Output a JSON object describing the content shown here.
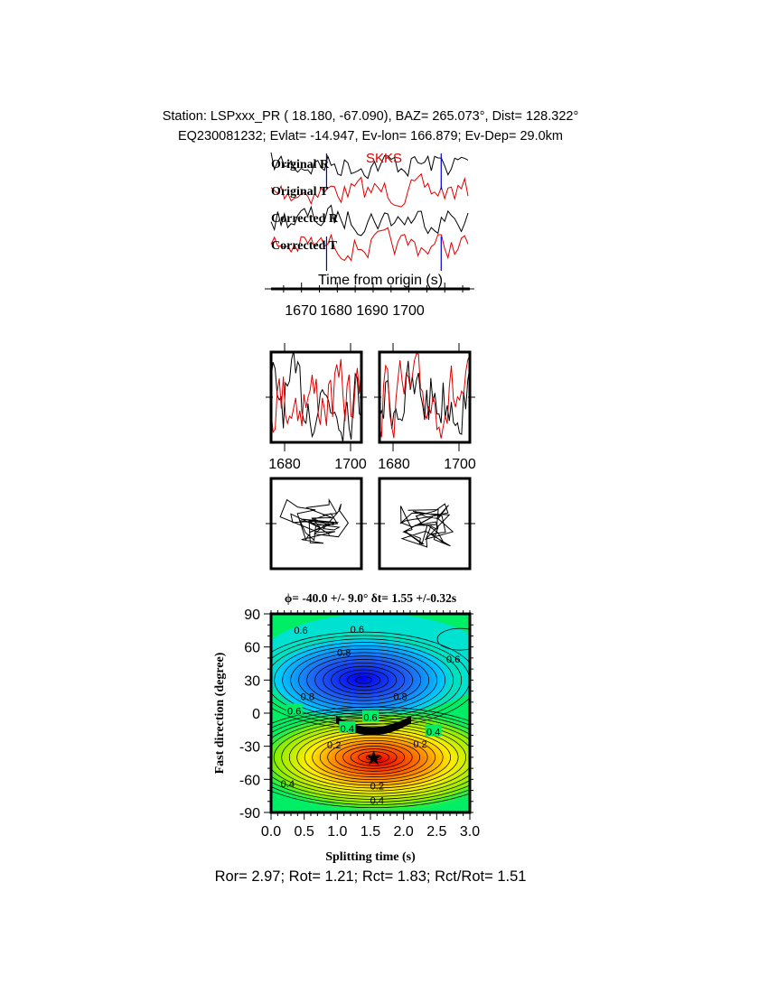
{
  "header": {
    "line1": "Station: LSPxxx_PR (  18.180,  -67.090), BAZ=  265.073°, Dist=  128.322°",
    "line2": "EQ230081232; Evlat= -14.947, Ev-lon= 166.879; Ev-Dep= 29.0km"
  },
  "traces": {
    "phase_label": "SKKS",
    "labels": [
      "Original R",
      "Original T",
      "Corrected R",
      "Corrected T"
    ],
    "colors": [
      "#000000",
      "#dd0000",
      "#000000",
      "#dd0000"
    ],
    "window_marks_s": [
      1677,
      1709
    ],
    "xlabel": "Time from origin (s)",
    "xticks": [
      "1670",
      "1680",
      "1690",
      "1700"
    ],
    "xlim": [
      1661.5,
      1717
    ]
  },
  "waveform_panels": {
    "xticks": [
      "1680",
      "1700"
    ]
  },
  "chart_data": {
    "type": "heatmap",
    "title": "ϕ= -40.0 +/- 9.0° δt= 1.55 +/-0.32s",
    "xlabel": "Splitting time (s)",
    "ylabel": "Fast direction (degree)",
    "xlim": [
      0.0,
      3.0
    ],
    "ylim": [
      -90,
      90
    ],
    "xticks": [
      "0.0",
      "0.5",
      "1.0",
      "1.5",
      "2.0",
      "2.5",
      "3.0"
    ],
    "yticks": [
      "90",
      "60",
      "30",
      "0",
      "-30",
      "-60",
      "-90"
    ],
    "best_fit": {
      "splitting_time": 1.55,
      "fast_direction": -40,
      "marker": "star"
    },
    "maximum_region": {
      "splitting_time": 1.4,
      "fast_direction": 30
    },
    "contour_labels": [
      {
        "text": "0.6",
        "x": 0.45,
        "y": 76
      },
      {
        "text": "0.6",
        "x": 1.3,
        "y": 77
      },
      {
        "text": "0.8",
        "x": 1.1,
        "y": 56
      },
      {
        "text": "0.6",
        "x": 2.75,
        "y": 50
      },
      {
        "text": "0.8",
        "x": 0.55,
        "y": 16
      },
      {
        "text": "0.8",
        "x": 1.95,
        "y": 16
      },
      {
        "text": "0.6",
        "x": 0.35,
        "y": 3
      },
      {
        "text": "0.6",
        "x": 1.5,
        "y": -3
      },
      {
        "text": "0.4",
        "x": 1.15,
        "y": -13
      },
      {
        "text": "0.4",
        "x": 2.45,
        "y": -16
      },
      {
        "text": "0.2",
        "x": 0.95,
        "y": -28
      },
      {
        "text": "0.2",
        "x": 2.25,
        "y": -27
      },
      {
        "text": "0.4",
        "x": 0.25,
        "y": -63
      },
      {
        "text": "0.2",
        "x": 1.6,
        "y": -65
      },
      {
        "text": "0.4",
        "x": 1.6,
        "y": -78
      }
    ],
    "colorscale": [
      "#0000ff",
      "#00e0ff",
      "#00ee66",
      "#ffff00",
      "#ff0000"
    ]
  },
  "footer": "Ror= 2.97; Rot= 1.21; Rct= 1.83; Rct/Rot= 1.51"
}
